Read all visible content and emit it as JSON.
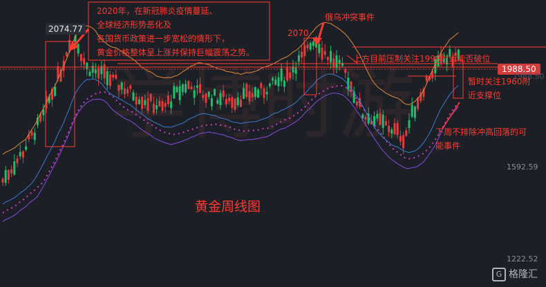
{
  "chart_data": {
    "type": "candlestick",
    "title": "黄金周线图",
    "high_label": "2074.77",
    "current_price": "1988.50",
    "hidden_price": "1988.50",
    "y_ticks": [
      "1592.59",
      "1222.52"
    ],
    "ylim": [
      1150,
      2130
    ],
    "annotations": {
      "covid_lines": [
        "2020年，在新冠肺炎疫情蔓延、",
        "全球经济形势恶化及",
        "各国货币政策进一步宽松的情形下，",
        "黄金价格整体呈上涨并保持巨幅震荡之势。"
      ],
      "war_peak": "2070",
      "war_event": "俄乌冲突事件",
      "resistance": "上方目前压制关注1998附近能否破位",
      "support_lines": [
        "暂时关注1960附",
        "近支撑位"
      ],
      "risk_lines": [
        "下周不排除冲高回落的可",
        "能事件"
      ]
    },
    "watermark": "学博时游",
    "brand": "格隆汇",
    "colors": {
      "up": "#e03c3c",
      "down": "#1fbf6b",
      "annotation": "#ff3b30",
      "ma_orange": "#e08a3c",
      "ma_blue": "#3a7bd5",
      "ma_purple": "#8a4be0"
    }
  }
}
